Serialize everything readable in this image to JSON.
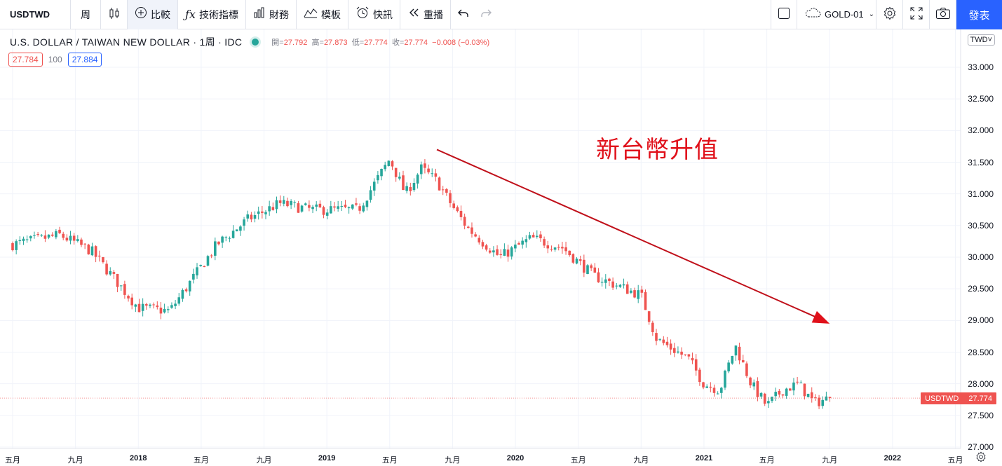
{
  "toolbar": {
    "symbol": "USDTWD",
    "interval": "周",
    "compare": "比較",
    "indicators": "技術指標",
    "financials": "財務",
    "templates": "模板",
    "alerts": "快訊",
    "replay": "重播",
    "layout_name": "GOLD-01",
    "publish": "發表"
  },
  "legend": {
    "title": "U.S. DOLLAR / TAIWAN NEW DOLLAR · 1周 · IDC",
    "open_label": "開=",
    "open": "27.792",
    "high_label": "高=",
    "high": "27.873",
    "low_label": "低=",
    "low": "27.774",
    "close_label": "收=",
    "close": "27.774",
    "change": "−0.008 (−0.03%)"
  },
  "quote": {
    "bid": "27.784",
    "spread": "100",
    "ask": "27.884"
  },
  "annotation": "新台幣升值",
  "price_axis": {
    "currency": "TWD",
    "ticks": [
      "33.000",
      "32.500",
      "32.000",
      "31.500",
      "31.000",
      "30.500",
      "30.000",
      "29.500",
      "29.000",
      "28.500",
      "28.000",
      "27.500",
      "27.000"
    ],
    "last_symbol": "USDTWD",
    "last_price": "27.774"
  },
  "time_axis": [
    {
      "text": "五月",
      "year": false
    },
    {
      "text": "九月",
      "year": false
    },
    {
      "text": "2018",
      "year": true
    },
    {
      "text": "五月",
      "year": false
    },
    {
      "text": "九月",
      "year": false
    },
    {
      "text": "2019",
      "year": true
    },
    {
      "text": "五月",
      "year": false
    },
    {
      "text": "九月",
      "year": false
    },
    {
      "text": "2020",
      "year": true
    },
    {
      "text": "五月",
      "year": false
    },
    {
      "text": "九月",
      "year": false
    },
    {
      "text": "2021",
      "year": true
    },
    {
      "text": "五月",
      "year": false
    },
    {
      "text": "九月",
      "year": false
    },
    {
      "text": "2022",
      "year": true
    },
    {
      "text": "五月",
      "year": false
    }
  ],
  "colors": {
    "up": "#26a69a",
    "down": "#ef5350",
    "arrow": "#c0101a",
    "accent": "#2962ff"
  },
  "chart_data": {
    "type": "candlestick",
    "series_name": "USDTWD",
    "ylim": [
      27.0,
      33.0
    ],
    "x_start": "2017-05",
    "x_end": "2022-07",
    "trend_arrow": {
      "from": {
        "date": "2019-08",
        "price": 31.7
      },
      "to": {
        "date": "2021-09",
        "price": 28.95
      }
    },
    "keypoints": [
      {
        "date": "2017-05",
        "close": 30.2
      },
      {
        "date": "2017-08",
        "close": 30.35
      },
      {
        "date": "2017-10",
        "close": 30.1
      },
      {
        "date": "2018-01",
        "close": 29.2
      },
      {
        "date": "2018-03",
        "close": 29.15
      },
      {
        "date": "2018-06",
        "close": 30.2
      },
      {
        "date": "2018-08",
        "close": 30.6
      },
      {
        "date": "2018-10",
        "close": 30.85
      },
      {
        "date": "2018-12",
        "close": 30.75
      },
      {
        "date": "2019-03",
        "close": 30.75
      },
      {
        "date": "2019-05",
        "close": 31.55
      },
      {
        "date": "2019-06",
        "close": 31.0
      },
      {
        "date": "2019-07",
        "close": 31.4
      },
      {
        "date": "2019-08",
        "close": 31.2
      },
      {
        "date": "2019-09",
        "close": 30.8
      },
      {
        "date": "2019-10",
        "close": 30.45
      },
      {
        "date": "2019-12",
        "close": 30.0
      },
      {
        "date": "2020-02",
        "close": 30.3
      },
      {
        "date": "2020-04",
        "close": 30.15
      },
      {
        "date": "2020-06",
        "close": 29.7
      },
      {
        "date": "2020-09",
        "close": 29.4
      },
      {
        "date": "2020-10",
        "close": 28.7
      },
      {
        "date": "2020-12",
        "close": 28.4
      },
      {
        "date": "2021-01",
        "close": 28.0
      },
      {
        "date": "2021-02",
        "close": 27.9
      },
      {
        "date": "2021-03",
        "close": 28.6
      },
      {
        "date": "2021-04",
        "close": 28.0
      },
      {
        "date": "2021-05",
        "close": 27.65
      },
      {
        "date": "2021-06",
        "close": 27.9
      },
      {
        "date": "2021-07",
        "close": 28.0
      },
      {
        "date": "2021-08",
        "close": 27.7
      },
      {
        "date": "2021-09",
        "close": 27.774
      }
    ]
  }
}
